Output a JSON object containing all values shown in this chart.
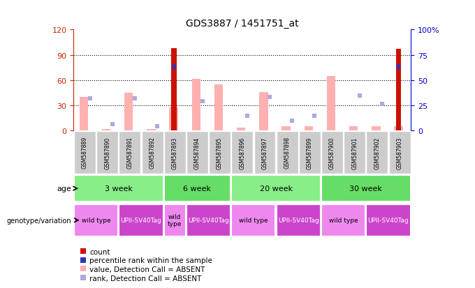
{
  "title": "GDS3887 / 1451751_at",
  "samples": [
    "GSM587889",
    "GSM587890",
    "GSM587891",
    "GSM587892",
    "GSM587893",
    "GSM587894",
    "GSM587895",
    "GSM587896",
    "GSM587897",
    "GSM587898",
    "GSM587899",
    "GSM587900",
    "GSM587901",
    "GSM587902",
    "GSM587903"
  ],
  "pink_bar_values": [
    40,
    2,
    45,
    2,
    28,
    62,
    55,
    4,
    46,
    5,
    5,
    65,
    5,
    5,
    5
  ],
  "blue_sq_values": [
    38,
    8,
    38,
    5,
    0,
    35,
    0,
    18,
    40,
    12,
    18,
    0,
    42,
    32,
    0
  ],
  "red_bar_values": [
    0,
    0,
    0,
    0,
    98,
    0,
    0,
    0,
    0,
    0,
    0,
    0,
    0,
    0,
    97
  ],
  "blue_mk_pct": [
    0,
    0,
    0,
    0,
    63,
    0,
    0,
    0,
    0,
    0,
    0,
    0,
    0,
    0,
    63
  ],
  "ylim_left": [
    0,
    120
  ],
  "ylim_right": [
    0,
    100
  ],
  "yticks_left": [
    0,
    30,
    60,
    90,
    120
  ],
  "yticks_right": [
    0,
    25,
    50,
    75,
    100
  ],
  "age_groups": [
    {
      "label": "3 week",
      "start": 0,
      "end": 4
    },
    {
      "label": "6 week",
      "start": 4,
      "end": 7
    },
    {
      "label": "20 week",
      "start": 7,
      "end": 11
    },
    {
      "label": "30 week",
      "start": 11,
      "end": 15
    }
  ],
  "genotype_groups": [
    {
      "label": "wild type",
      "start": 0,
      "end": 2,
      "wt": true
    },
    {
      "label": "UPII-SV40Tag",
      "start": 2,
      "end": 4,
      "wt": false
    },
    {
      "label": "wild\ntype",
      "start": 4,
      "end": 5,
      "wt": true
    },
    {
      "label": "UPII-SV40Tag",
      "start": 5,
      "end": 7,
      "wt": false
    },
    {
      "label": "wild type",
      "start": 7,
      "end": 9,
      "wt": true
    },
    {
      "label": "UPII-SV40Tag",
      "start": 9,
      "end": 11,
      "wt": false
    },
    {
      "label": "wild type",
      "start": 11,
      "end": 13,
      "wt": true
    },
    {
      "label": "UPII-SV40Tag",
      "start": 13,
      "end": 15,
      "wt": false
    }
  ],
  "age_color": "#88ee88",
  "age_color2": "#66dd66",
  "wt_color": "#ee88ee",
  "sv_color": "#cc44cc",
  "pink": "#ffb0b0",
  "red": "#cc1100",
  "light_blue": "#aaaadd",
  "dark_blue": "#3333bb",
  "left_color": "#cc2200",
  "right_color": "#0000cc",
  "gray_box": "#cccccc",
  "bg": "#ffffff"
}
